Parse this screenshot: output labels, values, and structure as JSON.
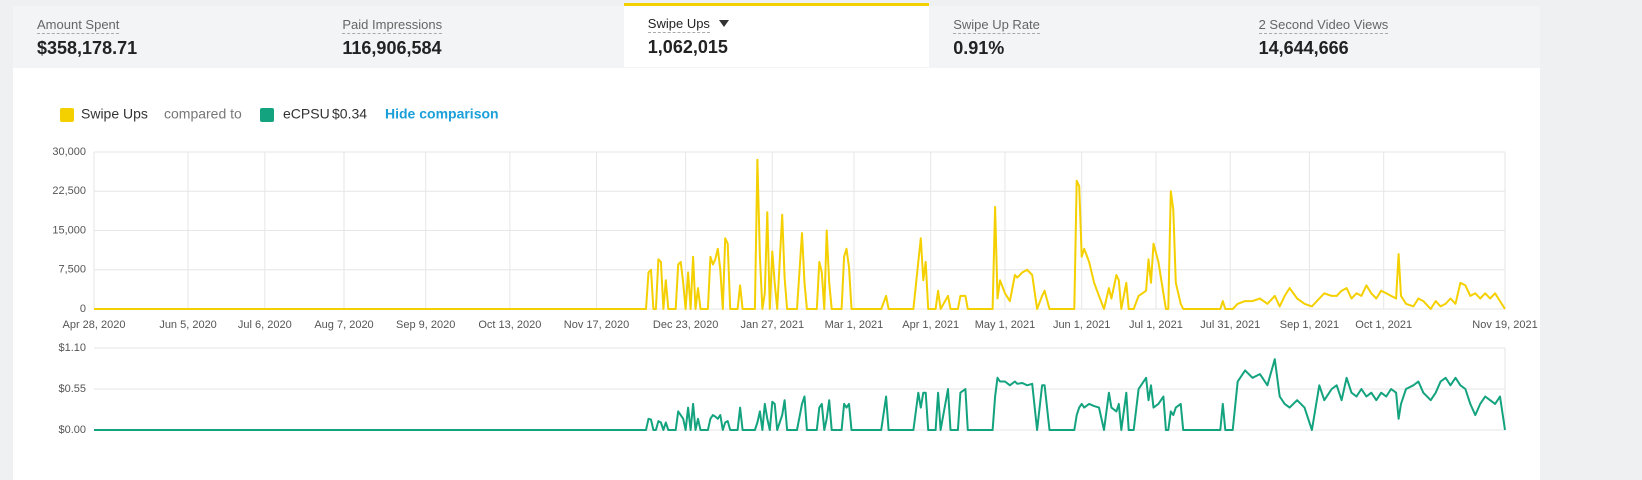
{
  "tabs": [
    {
      "label": "Amount Spent",
      "value": "$358,178.71"
    },
    {
      "label": "Paid Impressions",
      "value": "116,906,584"
    },
    {
      "label": "Swipe Ups",
      "value": "1,062,015",
      "active": true
    },
    {
      "label": "Swipe Up Rate",
      "value": "0.91%"
    },
    {
      "label": "2 Second Video Views",
      "value": "14,644,666"
    }
  ],
  "legend": {
    "compared": "compared to",
    "comparison_value": "$0.34",
    "action": "Hide comparison"
  },
  "chart_data": [
    {
      "type": "line",
      "series": [
        {
          "name": "Swipe Ups",
          "color": "#f5d000",
          "values": [
            0,
            0,
            7000,
            7500,
            0,
            0,
            9500,
            9000,
            0,
            5500,
            0,
            0,
            8500,
            9000,
            5000,
            0,
            7000,
            0,
            10000,
            0,
            4000,
            0,
            0,
            10000,
            8500,
            9500,
            11500,
            7500,
            0,
            13500,
            12500,
            0,
            0,
            4500,
            0,
            0,
            28500,
            10000,
            0,
            3000,
            18500,
            0,
            11000,
            5000,
            0,
            18000,
            6000,
            0,
            0,
            14500,
            5000,
            0,
            0,
            9000,
            7000,
            0,
            15000,
            5000,
            0,
            0,
            10000,
            11500,
            8000,
            0,
            0,
            2500,
            0,
            0,
            9000,
            13500,
            5500,
            9000,
            0,
            0,
            3500,
            0,
            2500,
            0,
            0,
            2500,
            2500,
            0,
            0,
            19500,
            2000,
            5500,
            3000,
            1500,
            6500,
            6000,
            7000,
            7500,
            6500,
            0,
            2500,
            3500,
            0,
            0,
            24500,
            23500,
            10000,
            11500,
            9000,
            5000,
            2500,
            0,
            4000,
            2000,
            6500,
            5500,
            0,
            5000,
            0,
            0,
            2500,
            3500,
            9500,
            5000,
            12500,
            9000,
            3000,
            0,
            0,
            22500,
            19000,
            5000,
            1000,
            0,
            0,
            1500,
            0,
            0,
            1000,
            1500,
            1500,
            2000,
            1000,
            2500,
            500,
            2500,
            4000,
            2000,
            1000,
            500,
            2000,
            3000,
            2500,
            2500,
            3500,
            4000,
            2000,
            3000,
            2500,
            4500,
            3000,
            2000,
            3500,
            3000,
            2500,
            2000,
            10500,
            2500,
            1000,
            500,
            2000,
            1500,
            0,
            1500,
            500,
            1000,
            2000,
            1000,
            5000,
            4500,
            2500,
            3000,
            2000,
            3000,
            2000,
            3000,
            1500,
            0
          ]
        }
      ],
      "x": [
        "2020-04-28",
        "2020-12-07",
        "2020-12-08",
        "2020-12-09",
        "2020-12-10",
        "2020-12-11",
        "2020-12-12",
        "2020-12-13",
        "2020-12-14",
        "2020-12-15",
        "2020-12-16",
        "2020-12-19",
        "2020-12-20",
        "2020-12-21",
        "2020-12-22",
        "2020-12-23",
        "2020-12-24",
        "2020-12-25",
        "2020-12-26",
        "2020-12-27",
        "2020-12-28",
        "2020-12-29",
        "2021-01-01",
        "2021-01-02",
        "2021-01-03",
        "2021-01-04",
        "2021-01-05",
        "2021-01-06",
        "2021-01-07",
        "2021-01-08",
        "2021-01-09",
        "2021-01-10",
        "2021-01-13",
        "2021-01-14",
        "2021-01-15",
        "2021-01-20",
        "2021-01-21",
        "2021-01-22",
        "2021-01-23",
        "2021-01-24",
        "2021-01-25",
        "2021-01-26",
        "2021-01-27",
        "2021-01-28",
        "2021-01-29",
        "2021-01-31",
        "2021-02-01",
        "2021-02-02",
        "2021-02-06",
        "2021-02-08",
        "2021-02-09",
        "2021-02-10",
        "2021-02-14",
        "2021-02-15",
        "2021-02-16",
        "2021-02-17",
        "2021-02-18",
        "2021-02-19",
        "2021-02-20",
        "2021-02-24",
        "2021-02-25",
        "2021-02-26",
        "2021-02-27",
        "2021-02-28",
        "2021-03-12",
        "2021-03-14",
        "2021-03-15",
        "2021-03-25",
        "2021-03-27",
        "2021-03-28",
        "2021-03-29",
        "2021-03-30",
        "2021-03-31",
        "2021-04-03",
        "2021-04-04",
        "2021-04-05",
        "2021-04-08",
        "2021-04-09",
        "2021-04-12",
        "2021-04-13",
        "2021-04-15",
        "2021-04-16",
        "2021-04-26",
        "2021-04-27",
        "2021-04-28",
        "2021-04-29",
        "2021-05-01",
        "2021-05-03",
        "2021-05-05",
        "2021-05-06",
        "2021-05-08",
        "2021-05-10",
        "2021-05-12",
        "2021-05-14",
        "2021-05-16",
        "2021-05-17",
        "2021-05-19",
        "2021-05-29",
        "2021-05-30",
        "2021-05-31",
        "2021-06-01",
        "2021-06-02",
        "2021-06-04",
        "2021-06-06",
        "2021-06-08",
        "2021-06-10",
        "2021-06-12",
        "2021-06-13",
        "2021-06-15",
        "2021-06-16",
        "2021-06-17",
        "2021-06-19",
        "2021-06-20",
        "2021-06-22",
        "2021-06-24",
        "2021-06-27",
        "2021-06-28",
        "2021-06-29",
        "2021-06-30",
        "2021-07-02",
        "2021-07-04",
        "2021-07-05",
        "2021-07-06",
        "2021-07-07",
        "2021-07-08",
        "2021-07-09",
        "2021-07-11",
        "2021-07-12",
        "2021-07-27",
        "2021-07-28",
        "2021-07-29",
        "2021-08-01",
        "2021-08-03",
        "2021-08-06",
        "2021-08-09",
        "2021-08-12",
        "2021-08-15",
        "2021-08-18",
        "2021-08-20",
        "2021-08-22",
        "2021-08-24",
        "2021-08-27",
        "2021-08-30",
        "2021-09-02",
        "2021-09-05",
        "2021-09-07",
        "2021-09-10",
        "2021-09-12",
        "2021-09-14",
        "2021-09-16",
        "2021-09-18",
        "2021-09-20",
        "2021-09-22",
        "2021-09-24",
        "2021-09-26",
        "2021-09-28",
        "2021-09-30",
        "2021-10-02",
        "2021-10-04",
        "2021-10-06",
        "2021-10-07",
        "2021-10-08",
        "2021-10-10",
        "2021-10-13",
        "2021-10-15",
        "2021-10-17",
        "2021-10-20",
        "2021-10-22",
        "2021-10-24",
        "2021-10-26",
        "2021-10-28",
        "2021-10-30",
        "2021-11-01",
        "2021-11-03",
        "2021-11-05",
        "2021-11-07",
        "2021-11-09",
        "2021-11-11",
        "2021-11-13",
        "2021-11-15",
        "2021-11-17",
        "2021-11-19"
      ],
      "xlim": [
        "2020-04-28",
        "2021-11-19"
      ],
      "xticks": [
        {
          "value": "2020-04-28",
          "label": "Apr 28, 2020"
        },
        {
          "value": "2020-06-05",
          "label": "Jun 5, 2020"
        },
        {
          "value": "2020-07-06",
          "label": "Jul 6, 2020"
        },
        {
          "value": "2020-08-07",
          "label": "Aug 7, 2020"
        },
        {
          "value": "2020-09-09",
          "label": "Sep 9, 2020"
        },
        {
          "value": "2020-10-13",
          "label": "Oct 13, 2020"
        },
        {
          "value": "2020-11-17",
          "label": "Nov 17, 2020"
        },
        {
          "value": "2020-12-23",
          "label": "Dec 23, 2020"
        },
        {
          "value": "2021-01-27",
          "label": "Jan 27, 2021"
        },
        {
          "value": "2021-03-01",
          "label": "Mar 1, 2021"
        },
        {
          "value": "2021-04-01",
          "label": "Apr 1, 2021"
        },
        {
          "value": "2021-05-01",
          "label": "May 1, 2021"
        },
        {
          "value": "2021-06-01",
          "label": "Jun 1, 2021"
        },
        {
          "value": "2021-07-01",
          "label": "Jul 1, 2021"
        },
        {
          "value": "2021-07-31",
          "label": "Jul 31, 2021"
        },
        {
          "value": "2021-09-01",
          "label": "Sep 1, 2021"
        },
        {
          "value": "2021-10-01",
          "label": "Oct 1, 2021"
        },
        {
          "value": "2021-11-19",
          "label": "Nov 19, 2021"
        }
      ],
      "ylim": [
        0,
        30000
      ],
      "yticks": [
        0,
        {
          "value": 7500,
          "label": "7,500"
        },
        {
          "value": 15000,
          "label": "15,000"
        },
        {
          "value": 22500,
          "label": "22,500"
        },
        {
          "value": 30000,
          "label": "30,000"
        }
      ],
      "grid": true
    },
    {
      "type": "line",
      "series": [
        {
          "name": "eCPSU",
          "color": "#14a37f",
          "values": [
            0,
            0,
            0.15,
            0.14,
            0,
            0,
            0.12,
            0.1,
            0,
            0.1,
            0,
            0,
            0.25,
            0.2,
            0.15,
            0,
            0.3,
            0,
            0.35,
            0,
            0.15,
            0,
            0,
            0.15,
            0.2,
            0.18,
            0.15,
            0.2,
            0,
            0.1,
            0.12,
            0,
            0,
            0.3,
            0,
            0,
            0.1,
            0.25,
            0,
            0.35,
            0.15,
            0,
            0.38,
            0.35,
            0,
            0.2,
            0.4,
            0,
            0,
            0.35,
            0.45,
            0,
            0,
            0.3,
            0.35,
            0,
            0.15,
            0.4,
            0,
            0,
            0.35,
            0.3,
            0.35,
            0,
            0,
            0.45,
            0,
            0,
            0.5,
            0.3,
            0.5,
            0.5,
            0,
            0,
            0.5,
            0,
            0.55,
            0,
            0,
            0.5,
            0.55,
            0,
            0,
            0.45,
            0.7,
            0.65,
            0.65,
            0.6,
            0.65,
            0.62,
            0.63,
            0.6,
            0.62,
            0,
            0.6,
            0.6,
            0,
            0,
            0.2,
            0.3,
            0.35,
            0.3,
            0.35,
            0.32,
            0.3,
            0,
            0.5,
            0.3,
            0.25,
            0.35,
            0,
            0.5,
            0,
            0,
            0.55,
            0.7,
            0.4,
            0.6,
            0.3,
            0.35,
            0.45,
            0,
            0,
            0.25,
            0.2,
            0.3,
            0.35,
            0,
            0,
            0.35,
            0,
            0,
            0.65,
            0.8,
            0.7,
            0.75,
            0.6,
            0.95,
            0.45,
            0.35,
            0.3,
            0.4,
            0.3,
            0,
            0.6,
            0.4,
            0.55,
            0.6,
            0.4,
            0.7,
            0.5,
            0.45,
            0.55,
            0.45,
            0.5,
            0.4,
            0.5,
            0.45,
            0.55,
            0.5,
            0.15,
            0.35,
            0.55,
            0.6,
            0.65,
            0.5,
            0.4,
            0.5,
            0.65,
            0.7,
            0.6,
            0.7,
            0.6,
            0.55,
            0.35,
            0.2,
            0.35,
            0.45,
            0.4,
            0.35,
            0.45,
            0
          ]
        }
      ],
      "x": [
        "2020-04-28",
        "2020-12-07",
        "2020-12-08",
        "2020-12-09",
        "2020-12-10",
        "2020-12-11",
        "2020-12-12",
        "2020-12-13",
        "2020-12-14",
        "2020-12-15",
        "2020-12-16",
        "2020-12-19",
        "2020-12-20",
        "2020-12-21",
        "2020-12-22",
        "2020-12-23",
        "2020-12-24",
        "2020-12-25",
        "2020-12-26",
        "2020-12-27",
        "2020-12-28",
        "2020-12-29",
        "2021-01-01",
        "2021-01-02",
        "2021-01-03",
        "2021-01-04",
        "2021-01-05",
        "2021-01-06",
        "2021-01-07",
        "2021-01-08",
        "2021-01-09",
        "2021-01-10",
        "2021-01-13",
        "2021-01-14",
        "2021-01-15",
        "2021-01-20",
        "2021-01-21",
        "2021-01-22",
        "2021-01-23",
        "2021-01-24",
        "2021-01-25",
        "2021-01-26",
        "2021-01-27",
        "2021-01-28",
        "2021-01-29",
        "2021-01-31",
        "2021-02-01",
        "2021-02-02",
        "2021-02-06",
        "2021-02-08",
        "2021-02-09",
        "2021-02-10",
        "2021-02-14",
        "2021-02-15",
        "2021-02-16",
        "2021-02-17",
        "2021-02-18",
        "2021-02-19",
        "2021-02-20",
        "2021-02-24",
        "2021-02-25",
        "2021-02-26",
        "2021-02-27",
        "2021-02-28",
        "2021-03-12",
        "2021-03-14",
        "2021-03-15",
        "2021-03-25",
        "2021-03-27",
        "2021-03-28",
        "2021-03-29",
        "2021-03-30",
        "2021-03-31",
        "2021-04-03",
        "2021-04-04",
        "2021-04-05",
        "2021-04-08",
        "2021-04-09",
        "2021-04-12",
        "2021-04-13",
        "2021-04-15",
        "2021-04-16",
        "2021-04-26",
        "2021-04-27",
        "2021-04-28",
        "2021-04-29",
        "2021-05-01",
        "2021-05-03",
        "2021-05-05",
        "2021-05-06",
        "2021-05-08",
        "2021-05-10",
        "2021-05-12",
        "2021-05-14",
        "2021-05-16",
        "2021-05-17",
        "2021-05-19",
        "2021-05-29",
        "2021-05-30",
        "2021-05-31",
        "2021-06-01",
        "2021-06-02",
        "2021-06-04",
        "2021-06-06",
        "2021-06-08",
        "2021-06-10",
        "2021-06-12",
        "2021-06-13",
        "2021-06-15",
        "2021-06-16",
        "2021-06-17",
        "2021-06-19",
        "2021-06-20",
        "2021-06-22",
        "2021-06-24",
        "2021-06-27",
        "2021-06-28",
        "2021-06-29",
        "2021-06-30",
        "2021-07-02",
        "2021-07-04",
        "2021-07-05",
        "2021-07-06",
        "2021-07-07",
        "2021-07-08",
        "2021-07-09",
        "2021-07-11",
        "2021-07-12",
        "2021-07-27",
        "2021-07-28",
        "2021-07-29",
        "2021-08-01",
        "2021-08-03",
        "2021-08-06",
        "2021-08-09",
        "2021-08-12",
        "2021-08-15",
        "2021-08-18",
        "2021-08-20",
        "2021-08-22",
        "2021-08-24",
        "2021-08-27",
        "2021-08-30",
        "2021-09-02",
        "2021-09-05",
        "2021-09-07",
        "2021-09-10",
        "2021-09-12",
        "2021-09-14",
        "2021-09-16",
        "2021-09-18",
        "2021-09-20",
        "2021-09-22",
        "2021-09-24",
        "2021-09-26",
        "2021-09-28",
        "2021-09-30",
        "2021-10-02",
        "2021-10-04",
        "2021-10-06",
        "2021-10-07",
        "2021-10-08",
        "2021-10-10",
        "2021-10-13",
        "2021-10-15",
        "2021-10-17",
        "2021-10-20",
        "2021-10-22",
        "2021-10-24",
        "2021-10-26",
        "2021-10-28",
        "2021-10-30",
        "2021-11-01",
        "2021-11-03",
        "2021-11-05",
        "2021-11-07",
        "2021-11-09",
        "2021-11-11",
        "2021-11-13",
        "2021-11-15",
        "2021-11-17",
        "2021-11-19"
      ],
      "xlim": [
        "2020-04-28",
        "2021-11-19"
      ],
      "ylim": [
        0,
        1.1
      ],
      "yticks": [
        {
          "value": 0,
          "label": "$0.00"
        },
        {
          "value": 0.55,
          "label": "$0.55"
        },
        {
          "value": 1.1,
          "label": "$1.10"
        }
      ],
      "grid": true
    }
  ]
}
